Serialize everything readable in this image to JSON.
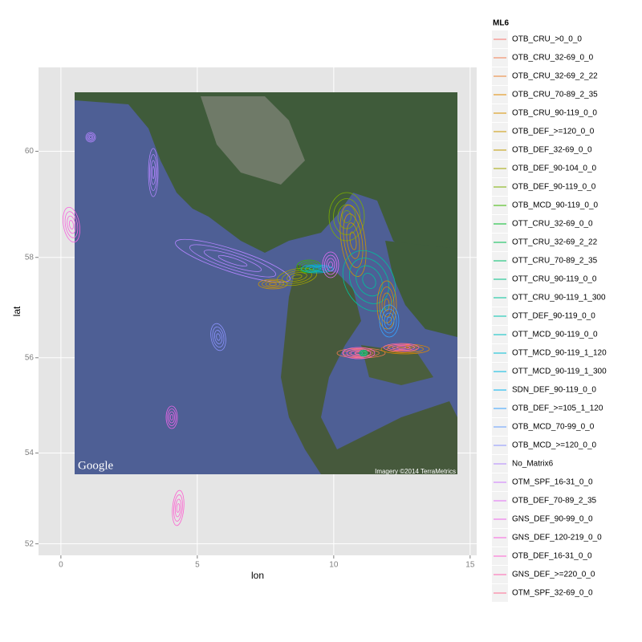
{
  "chart_data": {
    "type": "contour-map",
    "projection": "mercator",
    "x_label": "lon",
    "y_label": "lat",
    "xlim": [
      -0.82,
      15.24
    ],
    "xticks": [
      0,
      5,
      10,
      15
    ],
    "ylim": [
      51.74,
      61.5
    ],
    "yticks": [
      52,
      54,
      56,
      58,
      60
    ],
    "grid": true,
    "legend_title": "ML6",
    "basemap_logo": "Google",
    "basemap_credit": "Imagery ©2014 TerraMetrics",
    "series": [
      {
        "name": "OTB_CRU_>0_0_0",
        "color": "#F8766D"
      },
      {
        "name": "OTB_CRU_32-69_0_0",
        "color": "#F27D52"
      },
      {
        "name": "OTB_CRU_32-69_2_22",
        "color": "#EA8331"
      },
      {
        "name": "OTB_CRU_70-89_2_35",
        "color": "#E18A00"
      },
      {
        "name": "OTB_CRU_90-119_0_0",
        "color": "#D89000"
      },
      {
        "name": "OTB_DEF_>=120_0_0",
        "color": "#CC9600"
      },
      {
        "name": "OTB_DEF_32-69_0_0",
        "color": "#C09B00"
      },
      {
        "name": "OTB_DEF_90-104_0_0",
        "color": "#A3A500"
      },
      {
        "name": "OTB_DEF_90-119_0_0",
        "color": "#7CAE00"
      },
      {
        "name": "OTB_MCD_90-119_0_0",
        "color": "#39B600"
      },
      {
        "name": "OTT_CRU_32-69_0_0",
        "color": "#00B92A"
      },
      {
        "name": "OTT_CRU_32-69_2_22",
        "color": "#00BC51"
      },
      {
        "name": "OTT_CRU_70-89_2_35",
        "color": "#00BE6C"
      },
      {
        "name": "OTT_CRU_90-119_0_0",
        "color": "#00C085"
      },
      {
        "name": "OTT_CRU_90-119_1_300",
        "color": "#00C19B"
      },
      {
        "name": "OTT_DEF_90-119_0_0",
        "color": "#00C1AF"
      },
      {
        "name": "OTT_MCD_90-119_0_0",
        "color": "#00C0C2"
      },
      {
        "name": "OTT_MCD_90-119_1_120",
        "color": "#00BDD4"
      },
      {
        "name": "OTT_MCD_90-119_1_300",
        "color": "#00B9E3"
      },
      {
        "name": "SDN_DEF_90-119_0_0",
        "color": "#00B4F0"
      },
      {
        "name": "OTB_DEF_>=105_1_120",
        "color": "#35A2FF"
      },
      {
        "name": "OTB_MCD_70-99_0_0",
        "color": "#619CFF"
      },
      {
        "name": "OTB_MCD_>=120_0_0",
        "color": "#8B93FF"
      },
      {
        "name": "No_Matrix6",
        "color": "#B385FF"
      },
      {
        "name": "OTM_SPF_16-31_0_0",
        "color": "#CF78FF"
      },
      {
        "name": "OTB_DEF_70-89_2_35",
        "color": "#E26EF7"
      },
      {
        "name": "GNS_DEF_90-99_0_0",
        "color": "#EF67EB"
      },
      {
        "name": "GNS_DEF_120-219_0_0",
        "color": "#F863DF"
      },
      {
        "name": "OTB_DEF_16-31_0_0",
        "color": "#FD61D1"
      },
      {
        "name": "GNS_DEF_>=220_0_0",
        "color": "#FF64B0"
      },
      {
        "name": "OTM_SPF_32-69_0_0",
        "color": "#FF6C91"
      }
    ]
  }
}
